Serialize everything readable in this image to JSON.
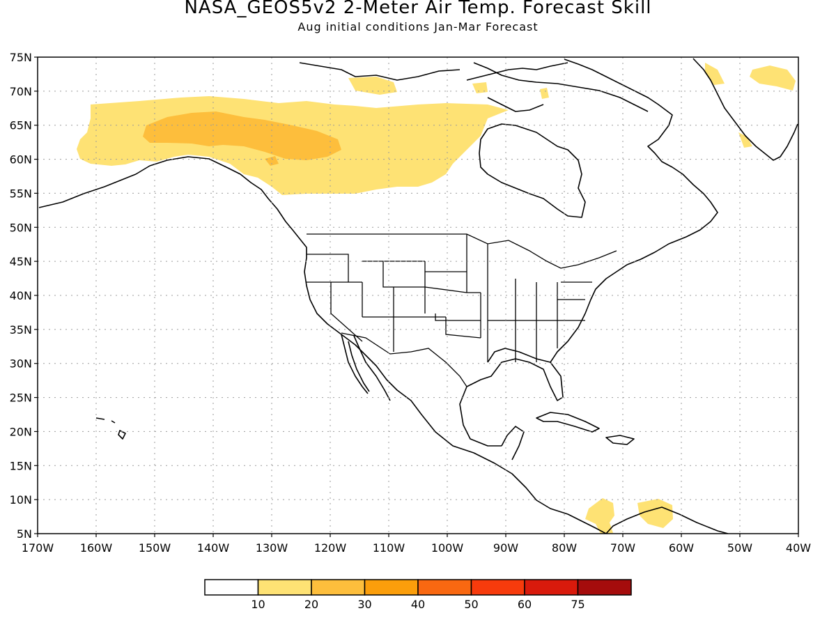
{
  "title": "NASA_GEOS5v2 2-Meter Air Temp. Forecast Skill",
  "subtitle": "Aug initial conditions  Jan-Mar Forecast",
  "lat_labels": [
    "75N",
    "70N",
    "65N",
    "60N",
    "55N",
    "50N",
    "45N",
    "40N",
    "35N",
    "30N",
    "25N",
    "20N",
    "15N",
    "10N",
    "5N"
  ],
  "lon_labels": [
    "170W",
    "160W",
    "150W",
    "140W",
    "130W",
    "120W",
    "110W",
    "100W",
    "90W",
    "80W",
    "70W",
    "60W",
    "50W",
    "40W"
  ],
  "colorbar": {
    "colors": [
      "#ffffff",
      "#fee274",
      "#fdbe3c",
      "#fb9e0b",
      "#f96811",
      "#f73b0c",
      "#d91a0c",
      "#a50c0c"
    ],
    "labels": [
      "10",
      "20",
      "30",
      "40",
      "50",
      "60",
      "75"
    ]
  }
}
